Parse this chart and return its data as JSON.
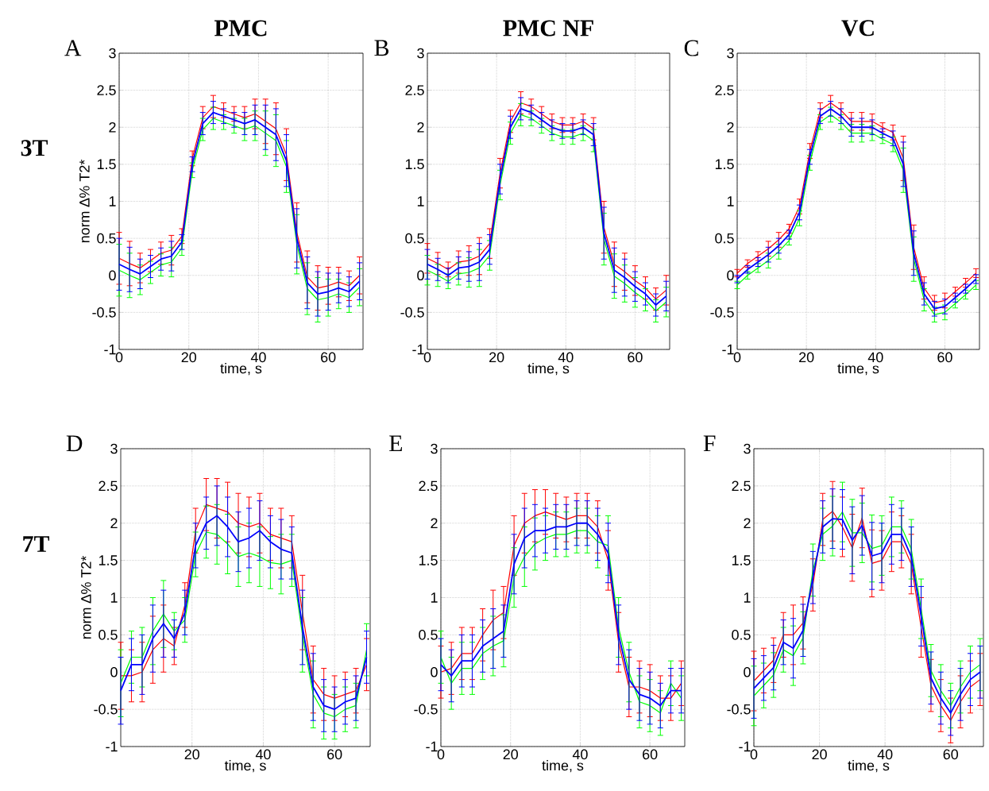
{
  "chart_data": [
    {
      "type": "line",
      "title": "PMC",
      "xlabel": "time, s",
      "ylabel": "norm ∆% T2*",
      "annotations": [
        "A",
        "3T"
      ],
      "grid": true,
      "xlim": [
        0,
        70
      ],
      "xticks": [
        0,
        20,
        40,
        60
      ],
      "ylim": [
        -1,
        3
      ],
      "yticks": [
        -1,
        -0.5,
        0,
        0.5,
        1,
        1.5,
        2,
        2.5,
        3
      ],
      "x": [
        0,
        3,
        6,
        9,
        12,
        15,
        18,
        21,
        24,
        27,
        30,
        33,
        36,
        39,
        42,
        45,
        48,
        51,
        54,
        57,
        60,
        63,
        66,
        69
      ],
      "series": [
        {
          "color": "#ff0000",
          "values": [
            0.23,
            0.16,
            0.1,
            0.2,
            0.3,
            0.34,
            0.53,
            1.58,
            2.13,
            2.28,
            2.23,
            2.18,
            2.13,
            2.18,
            2.08,
            1.98,
            1.63,
            0.58,
            -0.02,
            -0.17,
            -0.14,
            -0.09,
            -0.14,
            0.0
          ],
          "errors": [
            0.35,
            0.3,
            0.2,
            0.15,
            0.15,
            0.2,
            0.1,
            0.1,
            0.15,
            0.15,
            0.1,
            0.1,
            0.15,
            0.2,
            0.3,
            0.35,
            0.35,
            0.4,
            0.35,
            0.3,
            0.25,
            0.2,
            0.2,
            0.25
          ]
        },
        {
          "color": "#00ff00",
          "values": [
            0.07,
            0.0,
            -0.06,
            0.04,
            0.14,
            0.18,
            0.37,
            1.42,
            1.97,
            2.12,
            2.07,
            2.02,
            1.97,
            2.02,
            1.92,
            1.82,
            1.47,
            0.42,
            -0.18,
            -0.33,
            -0.3,
            -0.25,
            -0.3,
            -0.16
          ],
          "errors": [
            0.35,
            0.3,
            0.2,
            0.15,
            0.15,
            0.2,
            0.1,
            0.1,
            0.15,
            0.15,
            0.1,
            0.1,
            0.15,
            0.2,
            0.3,
            0.35,
            0.35,
            0.4,
            0.35,
            0.3,
            0.25,
            0.2,
            0.2,
            0.25
          ]
        },
        {
          "color": "#0000ff",
          "values": [
            0.15,
            0.08,
            0.02,
            0.12,
            0.22,
            0.26,
            0.45,
            1.5,
            2.05,
            2.2,
            2.15,
            2.1,
            2.05,
            2.1,
            2.0,
            1.9,
            1.55,
            0.5,
            -0.1,
            -0.25,
            -0.22,
            -0.17,
            -0.22,
            -0.08
          ],
          "errors": [
            0.35,
            0.3,
            0.2,
            0.15,
            0.15,
            0.2,
            0.1,
            0.1,
            0.15,
            0.15,
            0.1,
            0.1,
            0.15,
            0.2,
            0.3,
            0.35,
            0.35,
            0.4,
            0.35,
            0.3,
            0.25,
            0.2,
            0.2,
            0.25
          ]
        }
      ]
    },
    {
      "type": "line",
      "title": "PMC NF",
      "xlabel": "time, s",
      "annotations": [
        "B"
      ],
      "grid": true,
      "xlim": [
        0,
        70
      ],
      "xticks": [
        0,
        20,
        40,
        60
      ],
      "ylim": [
        -1,
        3
      ],
      "yticks": [
        -1,
        -0.5,
        0,
        0.5,
        1,
        1.5,
        2,
        2.5,
        3
      ],
      "x": [
        0,
        3,
        6,
        9,
        12,
        15,
        18,
        21,
        24,
        27,
        30,
        33,
        36,
        39,
        42,
        45,
        48,
        51,
        54,
        57,
        60,
        63,
        66,
        69
      ],
      "series": [
        {
          "color": "#ff0000",
          "values": [
            0.23,
            0.16,
            0.08,
            0.18,
            0.2,
            0.26,
            0.43,
            1.38,
            2.08,
            2.33,
            2.28,
            2.18,
            2.08,
            2.03,
            2.03,
            2.08,
            1.98,
            0.65,
            0.15,
            0.05,
            -0.07,
            -0.17,
            -0.32,
            -0.2
          ],
          "errors": [
            0.2,
            0.15,
            0.1,
            0.15,
            0.2,
            0.25,
            0.2,
            0.2,
            0.15,
            0.15,
            0.1,
            0.1,
            0.1,
            0.1,
            0.1,
            0.1,
            0.15,
            0.35,
            0.3,
            0.25,
            0.2,
            0.15,
            0.15,
            0.2
          ]
        },
        {
          "color": "#00ff00",
          "values": [
            0.07,
            0.0,
            -0.08,
            0.02,
            0.04,
            0.1,
            0.27,
            1.22,
            1.92,
            2.17,
            2.12,
            2.02,
            1.92,
            1.87,
            1.87,
            1.92,
            1.82,
            0.49,
            -0.01,
            -0.11,
            -0.23,
            -0.33,
            -0.48,
            -0.36
          ],
          "errors": [
            0.2,
            0.15,
            0.1,
            0.15,
            0.2,
            0.25,
            0.2,
            0.2,
            0.15,
            0.15,
            0.1,
            0.1,
            0.1,
            0.1,
            0.1,
            0.1,
            0.15,
            0.35,
            0.3,
            0.25,
            0.2,
            0.15,
            0.15,
            0.2
          ]
        },
        {
          "color": "#0000ff",
          "values": [
            0.15,
            0.08,
            0.0,
            0.1,
            0.12,
            0.18,
            0.35,
            1.3,
            2.0,
            2.25,
            2.2,
            2.1,
            2.0,
            1.95,
            1.95,
            2.0,
            1.9,
            0.57,
            0.07,
            -0.03,
            -0.15,
            -0.25,
            -0.4,
            -0.28
          ],
          "errors": [
            0.2,
            0.15,
            0.1,
            0.15,
            0.2,
            0.25,
            0.2,
            0.2,
            0.15,
            0.15,
            0.1,
            0.1,
            0.1,
            0.1,
            0.1,
            0.1,
            0.15,
            0.35,
            0.3,
            0.25,
            0.2,
            0.15,
            0.15,
            0.2
          ]
        }
      ]
    },
    {
      "type": "line",
      "title": "VC",
      "xlabel": "time, s",
      "annotations": [
        "C"
      ],
      "grid": true,
      "xlim": [
        0,
        70
      ],
      "xticks": [
        0,
        20,
        40,
        60
      ],
      "ylim": [
        -1,
        3
      ],
      "yticks": [
        -1,
        -0.5,
        0,
        0.5,
        1,
        1.5,
        2,
        2.5,
        3
      ],
      "x": [
        0,
        3,
        6,
        9,
        12,
        15,
        18,
        21,
        24,
        27,
        30,
        33,
        36,
        39,
        42,
        45,
        48,
        51,
        54,
        57,
        60,
        63,
        66,
        69
      ],
      "series": [
        {
          "color": "#ff0000",
          "values": [
            0.03,
            0.16,
            0.26,
            0.36,
            0.48,
            0.63,
            0.93,
            1.68,
            2.23,
            2.33,
            2.23,
            2.08,
            2.08,
            2.08,
            2.0,
            1.93,
            1.58,
            0.38,
            -0.17,
            -0.37,
            -0.34,
            -0.22,
            -0.1,
            0.03
          ],
          "errors": [
            0.05,
            0.05,
            0.06,
            0.1,
            0.1,
            0.06,
            0.1,
            0.1,
            0.1,
            0.1,
            0.1,
            0.12,
            0.12,
            0.1,
            0.06,
            0.1,
            0.3,
            0.3,
            0.15,
            0.1,
            0.1,
            0.06,
            0.06,
            0.06
          ]
        },
        {
          "color": "#00ff00",
          "values": [
            -0.13,
            0.0,
            0.1,
            0.2,
            0.32,
            0.47,
            0.77,
            1.52,
            2.07,
            2.17,
            2.07,
            1.92,
            1.92,
            1.92,
            1.84,
            1.77,
            1.42,
            0.22,
            -0.33,
            -0.53,
            -0.5,
            -0.38,
            -0.26,
            -0.13
          ],
          "errors": [
            0.05,
            0.05,
            0.06,
            0.1,
            0.1,
            0.06,
            0.1,
            0.1,
            0.1,
            0.1,
            0.1,
            0.12,
            0.12,
            0.1,
            0.06,
            0.1,
            0.3,
            0.3,
            0.15,
            0.1,
            0.1,
            0.06,
            0.06,
            0.06
          ]
        },
        {
          "color": "#0000ff",
          "values": [
            -0.05,
            0.08,
            0.18,
            0.28,
            0.4,
            0.55,
            0.85,
            1.6,
            2.15,
            2.25,
            2.15,
            2.0,
            2.0,
            2.0,
            1.92,
            1.85,
            1.5,
            0.3,
            -0.25,
            -0.45,
            -0.42,
            -0.3,
            -0.18,
            -0.05
          ],
          "errors": [
            0.05,
            0.05,
            0.06,
            0.1,
            0.1,
            0.06,
            0.1,
            0.1,
            0.1,
            0.1,
            0.1,
            0.12,
            0.12,
            0.1,
            0.06,
            0.1,
            0.3,
            0.3,
            0.15,
            0.1,
            0.1,
            0.06,
            0.06,
            0.06
          ]
        }
      ]
    },
    {
      "type": "line",
      "xlabel": "time, s",
      "ylabel": "norm ∆% T2*",
      "annotations": [
        "D",
        "7T"
      ],
      "grid": true,
      "xlim": [
        0,
        70
      ],
      "xticks": [
        20,
        40,
        60
      ],
      "ylim": [
        -1,
        3
      ],
      "yticks": [
        -1,
        -0.5,
        0,
        0.5,
        1,
        1.5,
        2,
        2.5,
        3
      ],
      "x": [
        0,
        3,
        6,
        9,
        12,
        15,
        18,
        21,
        24,
        27,
        30,
        33,
        36,
        39,
        42,
        45,
        48,
        51,
        54,
        57,
        60,
        63,
        66,
        69
      ],
      "series": [
        {
          "color": "#ff0000",
          "values": [
            -0.05,
            -0.05,
            0.0,
            0.3,
            0.45,
            0.35,
            0.9,
            1.9,
            2.25,
            2.2,
            2.15,
            2.0,
            1.95,
            2.0,
            1.85,
            1.8,
            1.75,
            0.8,
            -0.1,
            -0.3,
            -0.35,
            -0.3,
            -0.25,
            0.1
          ],
          "errors": [
            0.45,
            0.35,
            0.4,
            0.45,
            0.45,
            0.25,
            0.3,
            0.3,
            0.35,
            0.4,
            0.4,
            0.4,
            0.4,
            0.4,
            0.35,
            0.4,
            0.35,
            0.5,
            0.45,
            0.35,
            0.3,
            0.3,
            0.3,
            0.35
          ]
        },
        {
          "color": "#00ff00",
          "values": [
            -0.15,
            0.2,
            0.2,
            0.55,
            0.78,
            0.55,
            0.7,
            1.58,
            1.88,
            1.85,
            1.72,
            1.55,
            1.6,
            1.55,
            1.47,
            1.45,
            1.5,
            0.5,
            -0.3,
            -0.55,
            -0.6,
            -0.5,
            -0.45,
            0.3
          ],
          "errors": [
            0.45,
            0.35,
            0.4,
            0.45,
            0.45,
            0.25,
            0.3,
            0.3,
            0.35,
            0.4,
            0.4,
            0.4,
            0.4,
            0.4,
            0.35,
            0.4,
            0.35,
            0.5,
            0.45,
            0.35,
            0.3,
            0.3,
            0.3,
            0.35
          ]
        },
        {
          "color": "#0000ff",
          "values": [
            -0.25,
            0.1,
            0.1,
            0.45,
            0.65,
            0.45,
            0.8,
            1.7,
            2.0,
            2.1,
            1.95,
            1.75,
            1.8,
            1.9,
            1.75,
            1.65,
            1.6,
            0.6,
            -0.2,
            -0.45,
            -0.5,
            -0.4,
            -0.35,
            0.2
          ],
          "errors": [
            0.45,
            0.35,
            0.4,
            0.45,
            0.45,
            0.25,
            0.3,
            0.3,
            0.35,
            0.4,
            0.4,
            0.4,
            0.4,
            0.4,
            0.35,
            0.4,
            0.35,
            0.5,
            0.45,
            0.35,
            0.3,
            0.3,
            0.3,
            0.35
          ]
        }
      ]
    },
    {
      "type": "line",
      "xlabel": "time, s",
      "annotations": [
        "E"
      ],
      "grid": true,
      "xlim": [
        0,
        70
      ],
      "xticks": [
        0,
        20,
        40,
        60
      ],
      "ylim": [
        -1,
        3
      ],
      "yticks": [
        -1,
        -0.5,
        0,
        0.5,
        1,
        1.5,
        2,
        2.5,
        3
      ],
      "x": [
        0,
        3,
        6,
        9,
        12,
        15,
        18,
        21,
        24,
        27,
        30,
        33,
        36,
        39,
        42,
        45,
        48,
        51,
        54,
        57,
        60,
        63,
        66,
        69
      ],
      "series": [
        {
          "color": "#ff0000",
          "values": [
            0.0,
            0.05,
            0.25,
            0.25,
            0.5,
            0.7,
            0.8,
            1.7,
            2.0,
            2.1,
            2.15,
            2.1,
            2.05,
            2.1,
            2.1,
            1.95,
            1.5,
            0.4,
            -0.2,
            -0.2,
            -0.25,
            -0.35,
            -0.35,
            -0.15
          ],
          "errors": [
            0.35,
            0.35,
            0.35,
            0.35,
            0.35,
            0.4,
            0.35,
            0.4,
            0.4,
            0.35,
            0.3,
            0.3,
            0.3,
            0.3,
            0.3,
            0.35,
            0.4,
            0.4,
            0.4,
            0.35,
            0.35,
            0.3,
            0.3,
            0.3
          ]
        },
        {
          "color": "#00ff00",
          "values": [
            0.2,
            -0.15,
            0.05,
            0.05,
            0.25,
            0.35,
            0.42,
            1.27,
            1.55,
            1.72,
            1.8,
            1.85,
            1.85,
            1.9,
            1.9,
            1.75,
            1.7,
            0.6,
            0.0,
            -0.4,
            -0.45,
            -0.55,
            -0.15,
            -0.35
          ],
          "errors": [
            0.35,
            0.35,
            0.35,
            0.35,
            0.35,
            0.4,
            0.35,
            0.4,
            0.4,
            0.35,
            0.3,
            0.3,
            0.3,
            0.3,
            0.3,
            0.35,
            0.4,
            0.4,
            0.4,
            0.35,
            0.35,
            0.3,
            0.3,
            0.3
          ]
        },
        {
          "color": "#0000ff",
          "values": [
            0.1,
            -0.05,
            0.15,
            0.15,
            0.35,
            0.45,
            0.55,
            1.45,
            1.8,
            1.9,
            1.9,
            1.95,
            1.95,
            2.0,
            2.0,
            1.85,
            1.6,
            0.5,
            -0.1,
            -0.3,
            -0.35,
            -0.45,
            -0.25,
            -0.25
          ],
          "errors": [
            0.35,
            0.35,
            0.35,
            0.35,
            0.35,
            0.4,
            0.35,
            0.4,
            0.4,
            0.35,
            0.3,
            0.3,
            0.3,
            0.3,
            0.3,
            0.35,
            0.4,
            0.4,
            0.4,
            0.35,
            0.35,
            0.3,
            0.3,
            0.3
          ]
        }
      ]
    },
    {
      "type": "line",
      "xlabel": "time, s",
      "annotations": [
        "F"
      ],
      "grid": true,
      "xlim": [
        0,
        70
      ],
      "xticks": [
        0,
        20,
        40,
        60
      ],
      "ylim": [
        -1,
        3
      ],
      "yticks": [
        -1,
        -0.5,
        0,
        0.5,
        1,
        1.5,
        2,
        2.5,
        3
      ],
      "x": [
        0,
        3,
        6,
        9,
        12,
        15,
        18,
        21,
        24,
        27,
        30,
        33,
        36,
        39,
        42,
        45,
        48,
        51,
        54,
        57,
        60,
        63,
        66,
        69
      ],
      "series": [
        {
          "color": "#ff0000",
          "values": [
            -0.12,
            0.02,
            0.16,
            0.5,
            0.5,
            0.66,
            1.17,
            2.05,
            2.16,
            1.95,
            1.67,
            2.07,
            1.46,
            1.5,
            1.75,
            1.75,
            1.45,
            0.6,
            -0.18,
            -0.45,
            -0.65,
            -0.4,
            -0.2,
            -0.1
          ],
          "errors": [
            0.4,
            0.3,
            0.3,
            0.3,
            0.4,
            0.35,
            0.35,
            0.35,
            0.4,
            0.4,
            0.45,
            0.4,
            0.45,
            0.4,
            0.4,
            0.35,
            0.4,
            0.4,
            0.35,
            0.35,
            0.3,
            0.35,
            0.35,
            0.35
          ]
        },
        {
          "color": "#00ff00",
          "values": [
            -0.32,
            -0.18,
            -0.04,
            0.3,
            0.22,
            0.46,
            1.37,
            1.85,
            1.96,
            2.15,
            1.87,
            1.87,
            1.66,
            1.7,
            1.95,
            1.95,
            1.65,
            0.85,
            0.02,
            -0.25,
            -0.45,
            -0.2,
            0.0,
            0.1
          ],
          "errors": [
            0.4,
            0.3,
            0.3,
            0.3,
            0.4,
            0.35,
            0.35,
            0.35,
            0.4,
            0.4,
            0.45,
            0.4,
            0.45,
            0.4,
            0.4,
            0.35,
            0.4,
            0.4,
            0.35,
            0.35,
            0.3,
            0.35,
            0.35,
            0.35
          ]
        },
        {
          "color": "#0000ff",
          "values": [
            -0.22,
            -0.08,
            0.06,
            0.4,
            0.32,
            0.56,
            1.27,
            1.95,
            2.06,
            2.05,
            1.77,
            1.97,
            1.56,
            1.6,
            1.85,
            1.85,
            1.55,
            0.75,
            -0.08,
            -0.35,
            -0.55,
            -0.3,
            -0.1,
            0.0
          ],
          "errors": [
            0.4,
            0.3,
            0.3,
            0.3,
            0.4,
            0.35,
            0.35,
            0.35,
            0.4,
            0.4,
            0.45,
            0.4,
            0.45,
            0.4,
            0.4,
            0.35,
            0.4,
            0.4,
            0.35,
            0.35,
            0.3,
            0.35,
            0.35,
            0.35
          ]
        }
      ]
    }
  ]
}
